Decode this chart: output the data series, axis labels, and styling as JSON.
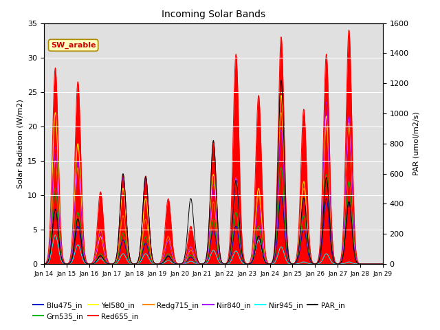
{
  "title": "Incoming Solar Bands",
  "ylabel_left": "Solar Radiation (W/m2)",
  "ylabel_right": "PAR (umol/m2/s)",
  "ylim_left": [
    0,
    35
  ],
  "ylim_right": [
    0,
    1600
  ],
  "annotation_text": "SW_arable",
  "annotation_color": "#cc0000",
  "annotation_bg": "#ffffc0",
  "annotation_border": "#aa8800",
  "bg_shade": "#e0e0e0",
  "legend_entries": [
    {
      "label": "Blu475_in",
      "color": "#0000cc"
    },
    {
      "label": "Grn535_in",
      "color": "#00bb00"
    },
    {
      "label": "Yel580_in",
      "color": "#ffff00"
    },
    {
      "label": "Red655_in",
      "color": "#ff0000"
    },
    {
      "label": "Redg715_in",
      "color": "#ff8800"
    },
    {
      "label": "Nir840_in",
      "color": "#aa00ff"
    },
    {
      "label": "Nir945_in",
      "color": "#00ffff"
    },
    {
      "label": "PAR_in",
      "color": "#000000"
    }
  ],
  "num_days": 15,
  "solar_peaks": [
    {
      "day": 0.5,
      "red": 28.5,
      "redg": 15.0,
      "nir840": 17.0,
      "yel": 22.0,
      "grn": 11.0,
      "blu": 8.0,
      "nir945": 4.2,
      "par": 360
    },
    {
      "day": 1.5,
      "red": 26.5,
      "redg": 14.0,
      "nir840": 15.0,
      "yel": 17.5,
      "grn": 7.5,
      "blu": 5.5,
      "nir945": 2.8,
      "par": 300
    },
    {
      "day": 2.5,
      "red": 10.5,
      "redg": 5.0,
      "nir840": 4.5,
      "yel": 4.0,
      "grn": 1.5,
      "blu": 1.2,
      "nir945": 0.8,
      "par": 55
    },
    {
      "day": 3.5,
      "red": 13.0,
      "redg": 7.0,
      "nir840": 12.5,
      "yel": 11.0,
      "grn": 4.5,
      "blu": 3.5,
      "nir945": 1.5,
      "par": 600
    },
    {
      "day": 4.5,
      "red": 12.8,
      "redg": 6.5,
      "nir840": 12.5,
      "yel": 9.5,
      "grn": 4.0,
      "blu": 3.0,
      "nir945": 1.5,
      "par": 580
    },
    {
      "day": 5.5,
      "red": 9.5,
      "redg": 4.0,
      "nir840": 3.5,
      "yel": 3.5,
      "grn": 1.5,
      "blu": 1.2,
      "nir945": 0.5,
      "par": 50
    },
    {
      "day": 6.5,
      "red": 5.5,
      "redg": 2.0,
      "nir840": 2.5,
      "yel": 2.5,
      "grn": 1.3,
      "blu": 1.0,
      "nir945": 0.4,
      "par": 435
    },
    {
      "day": 7.5,
      "red": 17.8,
      "redg": 9.0,
      "nir840": 11.5,
      "yel": 13.0,
      "grn": 6.5,
      "blu": 5.0,
      "nir945": 2.0,
      "par": 820
    },
    {
      "day": 8.5,
      "red": 30.5,
      "redg": 12.0,
      "nir840": 12.5,
      "yel": 12.5,
      "grn": 7.5,
      "blu": 5.5,
      "nir945": 1.9,
      "par": 555
    },
    {
      "day": 9.5,
      "red": 24.5,
      "redg": 10.0,
      "nir840": 8.5,
      "yel": 11.0,
      "grn": 5.5,
      "blu": 4.0,
      "nir945": 3.5,
      "par": 185
    },
    {
      "day": 10.5,
      "red": 33.0,
      "redg": 22.0,
      "nir840": 19.5,
      "yel": 24.5,
      "grn": 14.0,
      "blu": 10.0,
      "nir945": 2.5,
      "par": 1220
    },
    {
      "day": 11.5,
      "red": 22.5,
      "redg": 11.0,
      "nir840": 9.5,
      "yel": 12.0,
      "grn": 7.0,
      "blu": 5.0,
      "nir945": 0.3,
      "par": 440
    },
    {
      "day": 12.5,
      "red": 30.5,
      "redg": 20.0,
      "nir840": 23.5,
      "yel": 21.5,
      "grn": 13.0,
      "blu": 9.5,
      "nir945": 1.5,
      "par": 575
    },
    {
      "day": 13.5,
      "red": 34.0,
      "redg": 21.0,
      "nir840": 21.5,
      "yel": 20.5,
      "grn": 12.0,
      "blu": 9.0,
      "nir945": 0.3,
      "par": 415
    }
  ]
}
